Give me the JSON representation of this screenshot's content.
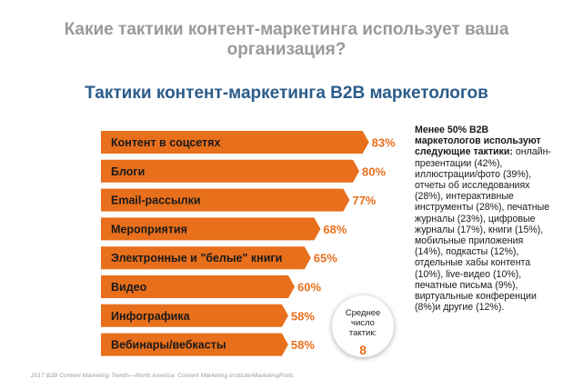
{
  "question": "Какие тактики контент-маркетинга использует ваша организация?",
  "chart_data": {
    "type": "bar",
    "orientation": "horizontal",
    "title": "Тактики контент-маркетинга B2B маркетологов",
    "categories": [
      "Контент в соцсетях",
      "Блоги",
      "Email-рассылки",
      "Мероприятия",
      "Электронные и \"белые\" книги",
      "Видео",
      "Инфографика",
      "Вебинары/вебкасты"
    ],
    "values": [
      83,
      80,
      77,
      68,
      65,
      60,
      58,
      58
    ],
    "value_labels": [
      "83%",
      "80%",
      "77%",
      "68%",
      "65%",
      "60%",
      "58%",
      "58%"
    ],
    "xlim": [
      0,
      100
    ],
    "grid": false,
    "bar_color": "#e86f1b",
    "label_color": "#e86f1b"
  },
  "note": {
    "lead": "Менее 50% B2B маркетологов используют следующие тактики:",
    "body": " онлайн-презентации (42%), иллюстрации/фото (39%), отчеты об исследованиях (28%), интерактивные инструменты (28%), печатные журналы (23%), цифровые журналы (17%), книги (15%), мобильные приложения (14%), подкасты (12%), отдельные хабы контента (10%), live-видео (10%), печатные письма (9%), виртуальные конференции (8%)и другие (12%)."
  },
  "badge": {
    "label": "Среднее число тактик:",
    "value": "8"
  },
  "source": "2017 B2B Content Marketing Trends—North America: Content Marketing Institute/MarketingProfs"
}
